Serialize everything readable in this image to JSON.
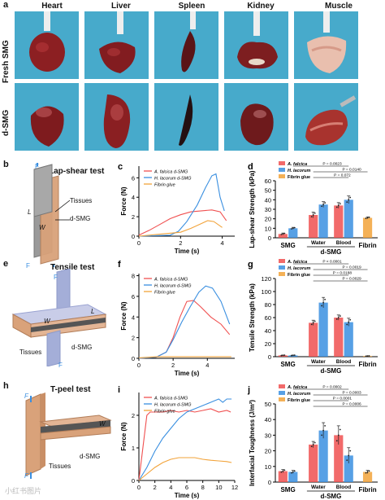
{
  "panel_a": {
    "label": "a",
    "columns": [
      "Heart",
      "Liver",
      "Spleen",
      "Kidney",
      "Muscle"
    ],
    "rows": [
      "Fresh SMG",
      "d-SMG"
    ]
  },
  "panel_b": {
    "label": "b",
    "title": "Lap-shear test",
    "tissues": "Tissues",
    "dsmg": "d-SMG",
    "F": "F",
    "L": "L",
    "W": "W"
  },
  "panel_e": {
    "label": "e",
    "title": "Tensile test",
    "tissues": "Tissues",
    "dsmg": "d-SMG",
    "F": "F",
    "L": "L",
    "W": "W"
  },
  "panel_h": {
    "label": "h",
    "title": "T-peel test",
    "tissues": "Tissues",
    "dsmg": "d-SMG",
    "F": "F",
    "W": "W"
  },
  "colors": {
    "red": "#f05050",
    "blue": "#3a8fe0",
    "orange": "#f2a33a",
    "bg_photo": "#3fa6c8"
  },
  "chart_data": [
    {
      "id": "c",
      "label": "c",
      "type": "line",
      "xlabel": "Time (s)",
      "ylabel": "Force (N)",
      "xlim": [
        0,
        4.6
      ],
      "ylim": [
        0,
        7.2
      ],
      "xticks": [
        0,
        2,
        4
      ],
      "yticks": [
        0,
        2,
        4,
        6
      ],
      "series": [
        {
          "name": "A. falcica d-SMG",
          "color": "#f05050",
          "x": [
            0,
            0.5,
            1,
            1.5,
            2,
            2.5,
            3,
            3.5,
            3.9,
            4.2
          ],
          "y": [
            0.1,
            0.6,
            1.2,
            1.8,
            2.2,
            2.5,
            2.6,
            2.7,
            2.5,
            1.6
          ]
        },
        {
          "name": "H. lacorum d-SMG",
          "color": "#3a8fe0",
          "x": [
            0,
            1.5,
            1.9,
            2.3,
            2.8,
            3.2,
            3.5,
            3.7,
            3.9,
            4.1
          ],
          "y": [
            0,
            0.1,
            0.5,
            1.5,
            3.2,
            5.0,
            6.2,
            6.4,
            4.0,
            2.6
          ]
        },
        {
          "name": "Fibrin glue",
          "color": "#f2a33a",
          "x": [
            0,
            1,
            2,
            2.5,
            3,
            3.3,
            3.6,
            4.0
          ],
          "y": [
            0,
            0.2,
            0.4,
            0.8,
            1.3,
            1.6,
            1.5,
            0.9
          ]
        }
      ]
    },
    {
      "id": "d",
      "label": "d",
      "type": "bar",
      "ylabel": "Lap-shear Strength (kPa)",
      "ylim": [
        0,
        60
      ],
      "yticks": [
        0,
        10,
        20,
        30,
        40,
        50,
        60
      ],
      "group_labels": [
        "SMG",
        "Water",
        "Blood",
        "Fibrin"
      ],
      "bracket_label": "d-SMG",
      "legend": [
        "A. falcica",
        "H. lacorum",
        "Fibrin glue"
      ],
      "bars": [
        {
          "series": "A. falcica",
          "value": 4,
          "err": 1
        },
        {
          "series": "H. lacorum",
          "value": 10,
          "err": 1
        },
        {
          "series": "A. falcica",
          "value": 24,
          "err": 3
        },
        {
          "series": "H. lacorum",
          "value": 35,
          "err": 3
        },
        {
          "series": "A. falcica",
          "value": 34,
          "err": 3
        },
        {
          "series": "H. lacorum",
          "value": 40,
          "err": 4
        },
        {
          "series": "Fibrin glue",
          "value": 21,
          "err": 1
        }
      ],
      "pvalues": [
        "P = 0.0023",
        "P = 0.0140",
        "P = 0.072"
      ]
    },
    {
      "id": "f",
      "label": "f",
      "type": "line",
      "xlabel": "Time (s)",
      "ylabel": "Force (N)",
      "xlim": [
        0,
        5.6
      ],
      "ylim": [
        0,
        8.2
      ],
      "xticks": [
        0,
        2,
        4
      ],
      "yticks": [
        0,
        2,
        4,
        6,
        8
      ],
      "series": [
        {
          "name": "A. falcica d-SMG",
          "color": "#f05050",
          "x": [
            0,
            1,
            1.6,
            2,
            2.4,
            2.8,
            3.2,
            3.6,
            4.2,
            4.8,
            5.3
          ],
          "y": [
            0,
            0.1,
            0.6,
            2.0,
            4.0,
            5.5,
            5.6,
            5.0,
            4.0,
            3.3,
            2.3
          ]
        },
        {
          "name": "H. lacorum d-SMG",
          "color": "#3a8fe0",
          "x": [
            0,
            1,
            1.6,
            2,
            2.5,
            3,
            3.5,
            3.9,
            4.3,
            4.8,
            5.3
          ],
          "y": [
            0,
            0.1,
            0.6,
            1.8,
            3.5,
            5.0,
            6.4,
            7.0,
            6.8,
            5.5,
            3.3
          ]
        },
        {
          "name": "Fibrin glue",
          "color": "#f2a33a",
          "x": [
            0,
            1,
            2,
            3,
            4,
            5,
            5.4
          ],
          "y": [
            0.05,
            0.15,
            0.15,
            0.15,
            0.15,
            0.15,
            0.15
          ]
        }
      ]
    },
    {
      "id": "g",
      "label": "g",
      "type": "bar",
      "ylabel": "Tensile Strength (kPa)",
      "ylim": [
        0,
        120
      ],
      "yticks": [
        0,
        20,
        40,
        60,
        80,
        100,
        120
      ],
      "group_labels": [
        "SMG",
        "Water",
        "Blood",
        "Fibrin"
      ],
      "bracket_label": "d-SMG",
      "legend": [
        "A. falcica",
        "H. lacorum",
        "Fibrin glue"
      ],
      "bars": [
        {
          "series": "A. falcica",
          "value": 2,
          "err": 0.5
        },
        {
          "series": "H. lacorum",
          "value": 2,
          "err": 0.5
        },
        {
          "series": "A. falcica",
          "value": 52,
          "err": 4
        },
        {
          "series": "H. lacorum",
          "value": 83,
          "err": 8
        },
        {
          "series": "A. falcica",
          "value": 60,
          "err": 4
        },
        {
          "series": "H. lacorum",
          "value": 53,
          "err": 6
        },
        {
          "series": "Fibrin glue",
          "value": 1,
          "err": 0.3
        }
      ],
      "pvalues": [
        "P < 0.0001",
        "P = 0.0019",
        "P = 0.0188",
        "P = 0.0029"
      ]
    },
    {
      "id": "i",
      "label": "i",
      "type": "line",
      "xlabel": "Time (s)",
      "ylabel": "Force (N)",
      "xlim": [
        0,
        12
      ],
      "ylim": [
        0,
        2.7
      ],
      "xticks": [
        0,
        2,
        4,
        6,
        8,
        10,
        12
      ],
      "yticks": [
        0,
        1,
        2
      ],
      "series": [
        {
          "name": "A. falcica d-SMG",
          "color": "#f05050",
          "x": [
            0,
            0.5,
            1,
            1.4,
            2,
            3,
            4,
            5,
            6,
            7,
            8,
            9,
            10,
            11,
            11.5
          ],
          "y": [
            0,
            1.0,
            2.0,
            2.1,
            2.1,
            2.1,
            2.15,
            2.1,
            2.15,
            2.1,
            2.15,
            2.2,
            2.1,
            2.15,
            2.1
          ]
        },
        {
          "name": "H. lacorum d-SMG",
          "color": "#3a8fe0",
          "x": [
            0,
            1,
            2,
            3,
            4,
            5,
            6,
            7,
            8,
            9,
            10,
            10.5,
            11,
            11.6
          ],
          "y": [
            0,
            0.4,
            0.9,
            1.3,
            1.6,
            1.9,
            2.1,
            2.2,
            2.3,
            2.4,
            2.5,
            2.4,
            2.5,
            2.5
          ]
        },
        {
          "name": "Fibrin glue",
          "color": "#f2a33a",
          "x": [
            0,
            1,
            2,
            3,
            4,
            5,
            6,
            7,
            8,
            9,
            10,
            11,
            11.6
          ],
          "y": [
            0,
            0.2,
            0.4,
            0.55,
            0.65,
            0.7,
            0.7,
            0.7,
            0.65,
            0.62,
            0.6,
            0.58,
            0.55
          ]
        }
      ]
    },
    {
      "id": "j",
      "label": "j",
      "type": "bar",
      "ylabel": "Interfacial Toughness (J/m²)",
      "ylim": [
        0,
        50
      ],
      "yticks": [
        0,
        10,
        20,
        30,
        40,
        50
      ],
      "group_labels": [
        "SMG",
        "Water",
        "Blood",
        "Fibrin"
      ],
      "bracket_label": "d-SMG",
      "legend": [
        "A. falcica",
        "H. lacorum",
        "Fibrin glue"
      ],
      "bars": [
        {
          "series": "A. falcica",
          "value": 7,
          "err": 1
        },
        {
          "series": "H. lacorum",
          "value": 6.5,
          "err": 1
        },
        {
          "series": "A. falcica",
          "value": 24,
          "err": 2
        },
        {
          "series": "H. lacorum",
          "value": 33,
          "err": 5
        },
        {
          "series": "A. falcica",
          "value": 30,
          "err": 6
        },
        {
          "series": "H. lacorum",
          "value": 17,
          "err": 5
        },
        {
          "series": "Fibrin glue",
          "value": 6.5,
          "err": 1
        }
      ],
      "pvalues": [
        "P = 0.0002",
        "P = 0.0003",
        "P = 0.0001",
        "P = 0.0006"
      ]
    }
  ],
  "watermark": "小红书图片"
}
